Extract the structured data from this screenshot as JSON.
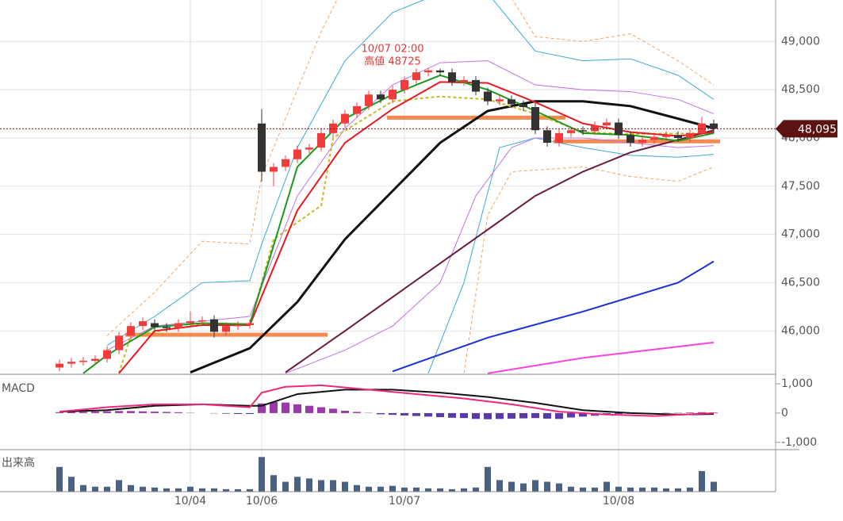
{
  "chart_data": [
    {
      "type": "candlestick",
      "up_color": "#f23c3c",
      "down_color": "#333333",
      "open": [
        45620,
        45660,
        45680,
        45690,
        45710,
        45800,
        45950,
        46050,
        46080,
        46040,
        46030,
        46080,
        46100,
        46120,
        45990,
        46050,
        46060,
        48150,
        47650,
        47700,
        47780,
        47880,
        47900,
        48050,
        48150,
        48250,
        48330,
        48450,
        48400,
        48500,
        48600,
        48680,
        48700,
        48680,
        48580,
        48600,
        48480,
        48380,
        48400,
        48350,
        48320,
        48080,
        47950,
        48050,
        48080,
        48070,
        48130,
        48160,
        48030,
        47950,
        47980,
        48010,
        48030,
        48000,
        48050,
        48150
      ],
      "high": [
        45700,
        45720,
        45730,
        45750,
        45840,
        45990,
        46090,
        46140,
        46120,
        46080,
        46120,
        46200,
        46150,
        46160,
        46090,
        46100,
        46120,
        48300,
        47740,
        47820,
        47920,
        47940,
        48090,
        48190,
        48290,
        48370,
        48490,
        48490,
        48540,
        48640,
        48720,
        48725,
        48720,
        48720,
        48640,
        48640,
        48520,
        48440,
        48440,
        48390,
        48360,
        48120,
        48090,
        48120,
        48120,
        48170,
        48200,
        48200,
        48070,
        48020,
        48050,
        48070,
        48070,
        48090,
        48220,
        48190
      ],
      "low": [
        45580,
        45620,
        45640,
        45650,
        45670,
        45760,
        45910,
        46010,
        46000,
        45990,
        45990,
        46040,
        46060,
        45930,
        45950,
        46010,
        46020,
        47550,
        47500,
        47660,
        47740,
        47840,
        47860,
        48010,
        48110,
        48210,
        48290,
        48360,
        48360,
        48460,
        48560,
        48640,
        48640,
        48540,
        48540,
        48440,
        48340,
        48340,
        48310,
        48280,
        48040,
        47910,
        47910,
        48010,
        48030,
        48030,
        48090,
        47990,
        47910,
        47910,
        47940,
        47970,
        47960,
        47960,
        48010,
        48050
      ],
      "close": [
        45660,
        45680,
        45690,
        45710,
        45800,
        45950,
        46050,
        46100,
        46040,
        46030,
        46080,
        46100,
        46110,
        45990,
        46050,
        46060,
        46080,
        47650,
        47700,
        47780,
        47880,
        47900,
        48050,
        48150,
        48250,
        48330,
        48450,
        48400,
        48500,
        48600,
        48680,
        48700,
        48680,
        48580,
        48600,
        48480,
        48380,
        48400,
        48350,
        48320,
        48080,
        47950,
        48050,
        48080,
        48070,
        48130,
        48160,
        48030,
        47950,
        47980,
        48010,
        48030,
        48000,
        48050,
        48150,
        48095
      ],
      "lines": [
        {
          "color": "#f5a460",
          "width": 1,
          "style": "dashed",
          "x": [
            4,
            8,
            12,
            16,
            17,
            20,
            22,
            24
          ],
          "values": [
            45950,
            46400,
            46930,
            46900,
            47600,
            48500,
            49100,
            49600
          ]
        },
        {
          "color": "#f5a460",
          "width": 1,
          "style": "dashed",
          "x": [
            36,
            38,
            40,
            44,
            48,
            52,
            55
          ],
          "values": [
            49600,
            49450,
            49050,
            49000,
            49080,
            48800,
            48550
          ]
        },
        {
          "color": "#f5a460",
          "width": 1,
          "style": "dashed",
          "x": [
            34,
            36,
            38,
            44,
            48,
            52,
            55
          ],
          "values": [
            45560,
            47200,
            47650,
            47700,
            47600,
            47550,
            47700
          ]
        },
        {
          "color": "#3aa8d8",
          "width": 1,
          "x": [
            4,
            8,
            12,
            16,
            17,
            20,
            24,
            28,
            32,
            36,
            40,
            44,
            48,
            52,
            55
          ],
          "values": [
            45850,
            46150,
            46500,
            46520,
            46900,
            47900,
            48800,
            49300,
            49500,
            49500,
            48900,
            48800,
            48820,
            48650,
            48400
          ]
        },
        {
          "color": "#3aa8d8",
          "width": 1,
          "x": [
            31,
            34,
            37,
            40,
            44,
            48,
            52,
            55
          ],
          "values": [
            45560,
            46500,
            47900,
            48000,
            47900,
            47820,
            47800,
            47830
          ]
        },
        {
          "color": "#c070e8",
          "width": 1,
          "x": [
            4,
            8,
            12,
            16,
            20,
            24,
            28,
            32,
            36,
            40,
            44,
            48,
            52,
            55
          ],
          "values": [
            45800,
            46050,
            46100,
            46150,
            47400,
            48100,
            48550,
            48780,
            48800,
            48550,
            48500,
            48480,
            48400,
            48250
          ]
        },
        {
          "color": "#c070e8",
          "width": 1,
          "x": [
            19,
            24,
            28,
            32,
            35,
            38,
            40,
            44,
            48,
            52,
            55
          ],
          "values": [
            45560,
            45800,
            46050,
            46500,
            47400,
            47900,
            48000,
            48000,
            47950,
            47900,
            47920
          ]
        },
        {
          "color": "#e8e020",
          "width": 1,
          "x": [
            28,
            55
          ],
          "values": [
            48450,
            48050
          ],
          "hidden": true
        },
        {
          "color": "#ff40e0",
          "width": 2,
          "x": [
            36,
            44,
            55
          ],
          "values": [
            45560,
            45720,
            45880
          ]
        },
        {
          "color": "#1a30d8",
          "width": 2,
          "x": [
            28,
            36,
            44,
            52,
            55
          ],
          "values": [
            45580,
            45930,
            46200,
            46500,
            46720
          ]
        },
        {
          "color": "#6a1a40",
          "width": 2,
          "x": [
            19,
            24,
            28,
            32,
            36,
            40,
            44,
            48,
            52,
            55
          ],
          "values": [
            45570,
            46000,
            46350,
            46700,
            47050,
            47400,
            47650,
            47850,
            47980,
            48080
          ]
        },
        {
          "color": "#111111",
          "width": 3,
          "x": [
            11,
            16,
            20,
            24,
            28,
            32,
            36,
            40,
            44,
            48,
            52,
            55
          ],
          "values": [
            45570,
            45820,
            46300,
            46950,
            47450,
            47950,
            48280,
            48380,
            48380,
            48330,
            48200,
            48100
          ]
        },
        {
          "color": "#c8b820",
          "width": 2,
          "style": "dashed",
          "x": [
            5,
            6,
            12,
            16,
            17,
            18,
            22,
            23,
            28,
            32,
            36,
            40,
            44,
            48,
            55
          ],
          "values": [
            45560,
            45950,
            46070,
            46070,
            46500,
            46950,
            47300,
            48000,
            48380,
            48430,
            48400,
            48250,
            48060,
            48040,
            48050
          ]
        },
        {
          "color": "#e8181e",
          "width": 2,
          "x": [
            5,
            8,
            12,
            16,
            20,
            24,
            28,
            32,
            36,
            40,
            44,
            48,
            52,
            55
          ],
          "values": [
            45560,
            46000,
            46060,
            46060,
            47250,
            47950,
            48300,
            48580,
            48570,
            48370,
            48150,
            48060,
            48020,
            48060
          ]
        },
        {
          "color": "#1a9a1a",
          "width": 2,
          "x": [
            2,
            4,
            8,
            12,
            16,
            20,
            24,
            28,
            32,
            36,
            40,
            44,
            48,
            52,
            55
          ],
          "values": [
            45560,
            45750,
            46040,
            46080,
            46070,
            47700,
            48200,
            48450,
            48650,
            48500,
            48280,
            48050,
            48030,
            47970,
            48050
          ]
        }
      ],
      "levels": [
        {
          "value": 45960,
          "from": 6,
          "to": 23
        },
        {
          "value": 48210,
          "from": 28,
          "to": 43
        },
        {
          "value": 47965,
          "from": 42,
          "to": 56
        }
      ],
      "level_color": "#f58a50",
      "ylim": [
        45550,
        49430
      ],
      "yticks": [
        {
          "value": 46000,
          "label": "46,000"
        },
        {
          "value": 46500,
          "label": "46,500"
        },
        {
          "value": 47000,
          "label": "47,000"
        },
        {
          "value": 47500,
          "label": "47,500"
        },
        {
          "value": 48000,
          "label": "48,000"
        },
        {
          "value": 48500,
          "label": "48,500"
        },
        {
          "value": 49000,
          "label": "49,000"
        }
      ],
      "last_price": {
        "value": 48095,
        "label": "48,095"
      },
      "annotation": {
        "index": 31,
        "value": 48725,
        "lines": [
          "10/07 02:00",
          "高値 48725"
        ]
      },
      "grid": true
    },
    {
      "type": "macd",
      "title": "MACD",
      "histogram": [
        30,
        40,
        40,
        50,
        60,
        70,
        70,
        60,
        50,
        40,
        30,
        10,
        0,
        -10,
        -20,
        -30,
        -30,
        330,
        380,
        360,
        300,
        250,
        200,
        150,
        80,
        40,
        10,
        -40,
        -60,
        -80,
        -100,
        -120,
        -140,
        -160,
        -170,
        -200,
        -210,
        -200,
        -190,
        -180,
        -170,
        -190,
        -200,
        -150,
        -120,
        -90,
        -60,
        -30,
        -20,
        -10,
        0,
        10,
        10,
        20,
        30,
        20
      ],
      "histogram_colors": [
        "#9a3aa8",
        "#5a3aa8"
      ],
      "lines": [
        {
          "color": "#111111",
          "width": 2,
          "x": [
            0,
            4,
            8,
            12,
            16,
            17,
            20,
            24,
            28,
            32,
            36,
            40,
            44,
            48,
            52,
            55
          ],
          "values": [
            50,
            100,
            250,
            300,
            250,
            250,
            650,
            800,
            800,
            700,
            550,
            350,
            100,
            0,
            -50,
            -30
          ]
        },
        {
          "color": "#f0287a",
          "width": 2,
          "x": [
            0,
            4,
            8,
            12,
            16,
            17,
            19,
            22,
            26,
            30,
            34,
            38,
            42,
            46,
            50,
            55
          ],
          "values": [
            50,
            200,
            300,
            300,
            200,
            700,
            900,
            950,
            800,
            650,
            500,
            300,
            50,
            -50,
            -100,
            0
          ]
        }
      ],
      "ylim": [
        -1250,
        1300
      ],
      "yticks": [
        {
          "value": -1000,
          "label": "-1,000"
        },
        0,
        {
          "value": 1000,
          "label": "1,000"
        }
      ]
    },
    {
      "type": "bar",
      "title": "出来高",
      "color": "#4a6282",
      "values": [
        30,
        18,
        8,
        6,
        6,
        14,
        8,
        6,
        5,
        4,
        4,
        6,
        4,
        4,
        3,
        3,
        3,
        42,
        20,
        12,
        18,
        16,
        14,
        14,
        12,
        8,
        6,
        6,
        7,
        5,
        5,
        4,
        4,
        3,
        4,
        5,
        30,
        14,
        12,
        10,
        14,
        12,
        10,
        6,
        5,
        5,
        12,
        6,
        5,
        5,
        5,
        4,
        4,
        5,
        25,
        12
      ],
      "ylim": [
        0,
        50
      ],
      "categories": [
        null,
        null,
        null,
        null,
        null,
        null,
        null,
        null,
        null,
        null,
        null,
        "10/04",
        null,
        null,
        null,
        null,
        null,
        "10/06",
        null,
        null,
        null,
        null,
        null,
        null,
        null,
        null,
        null,
        null,
        null,
        "10/07",
        null,
        null,
        null,
        null,
        null,
        null,
        null,
        null,
        null,
        null,
        null,
        null,
        null,
        null,
        null,
        null,
        null,
        "10/08",
        null,
        null,
        null,
        null,
        null,
        null,
        null,
        null
      ]
    }
  ]
}
